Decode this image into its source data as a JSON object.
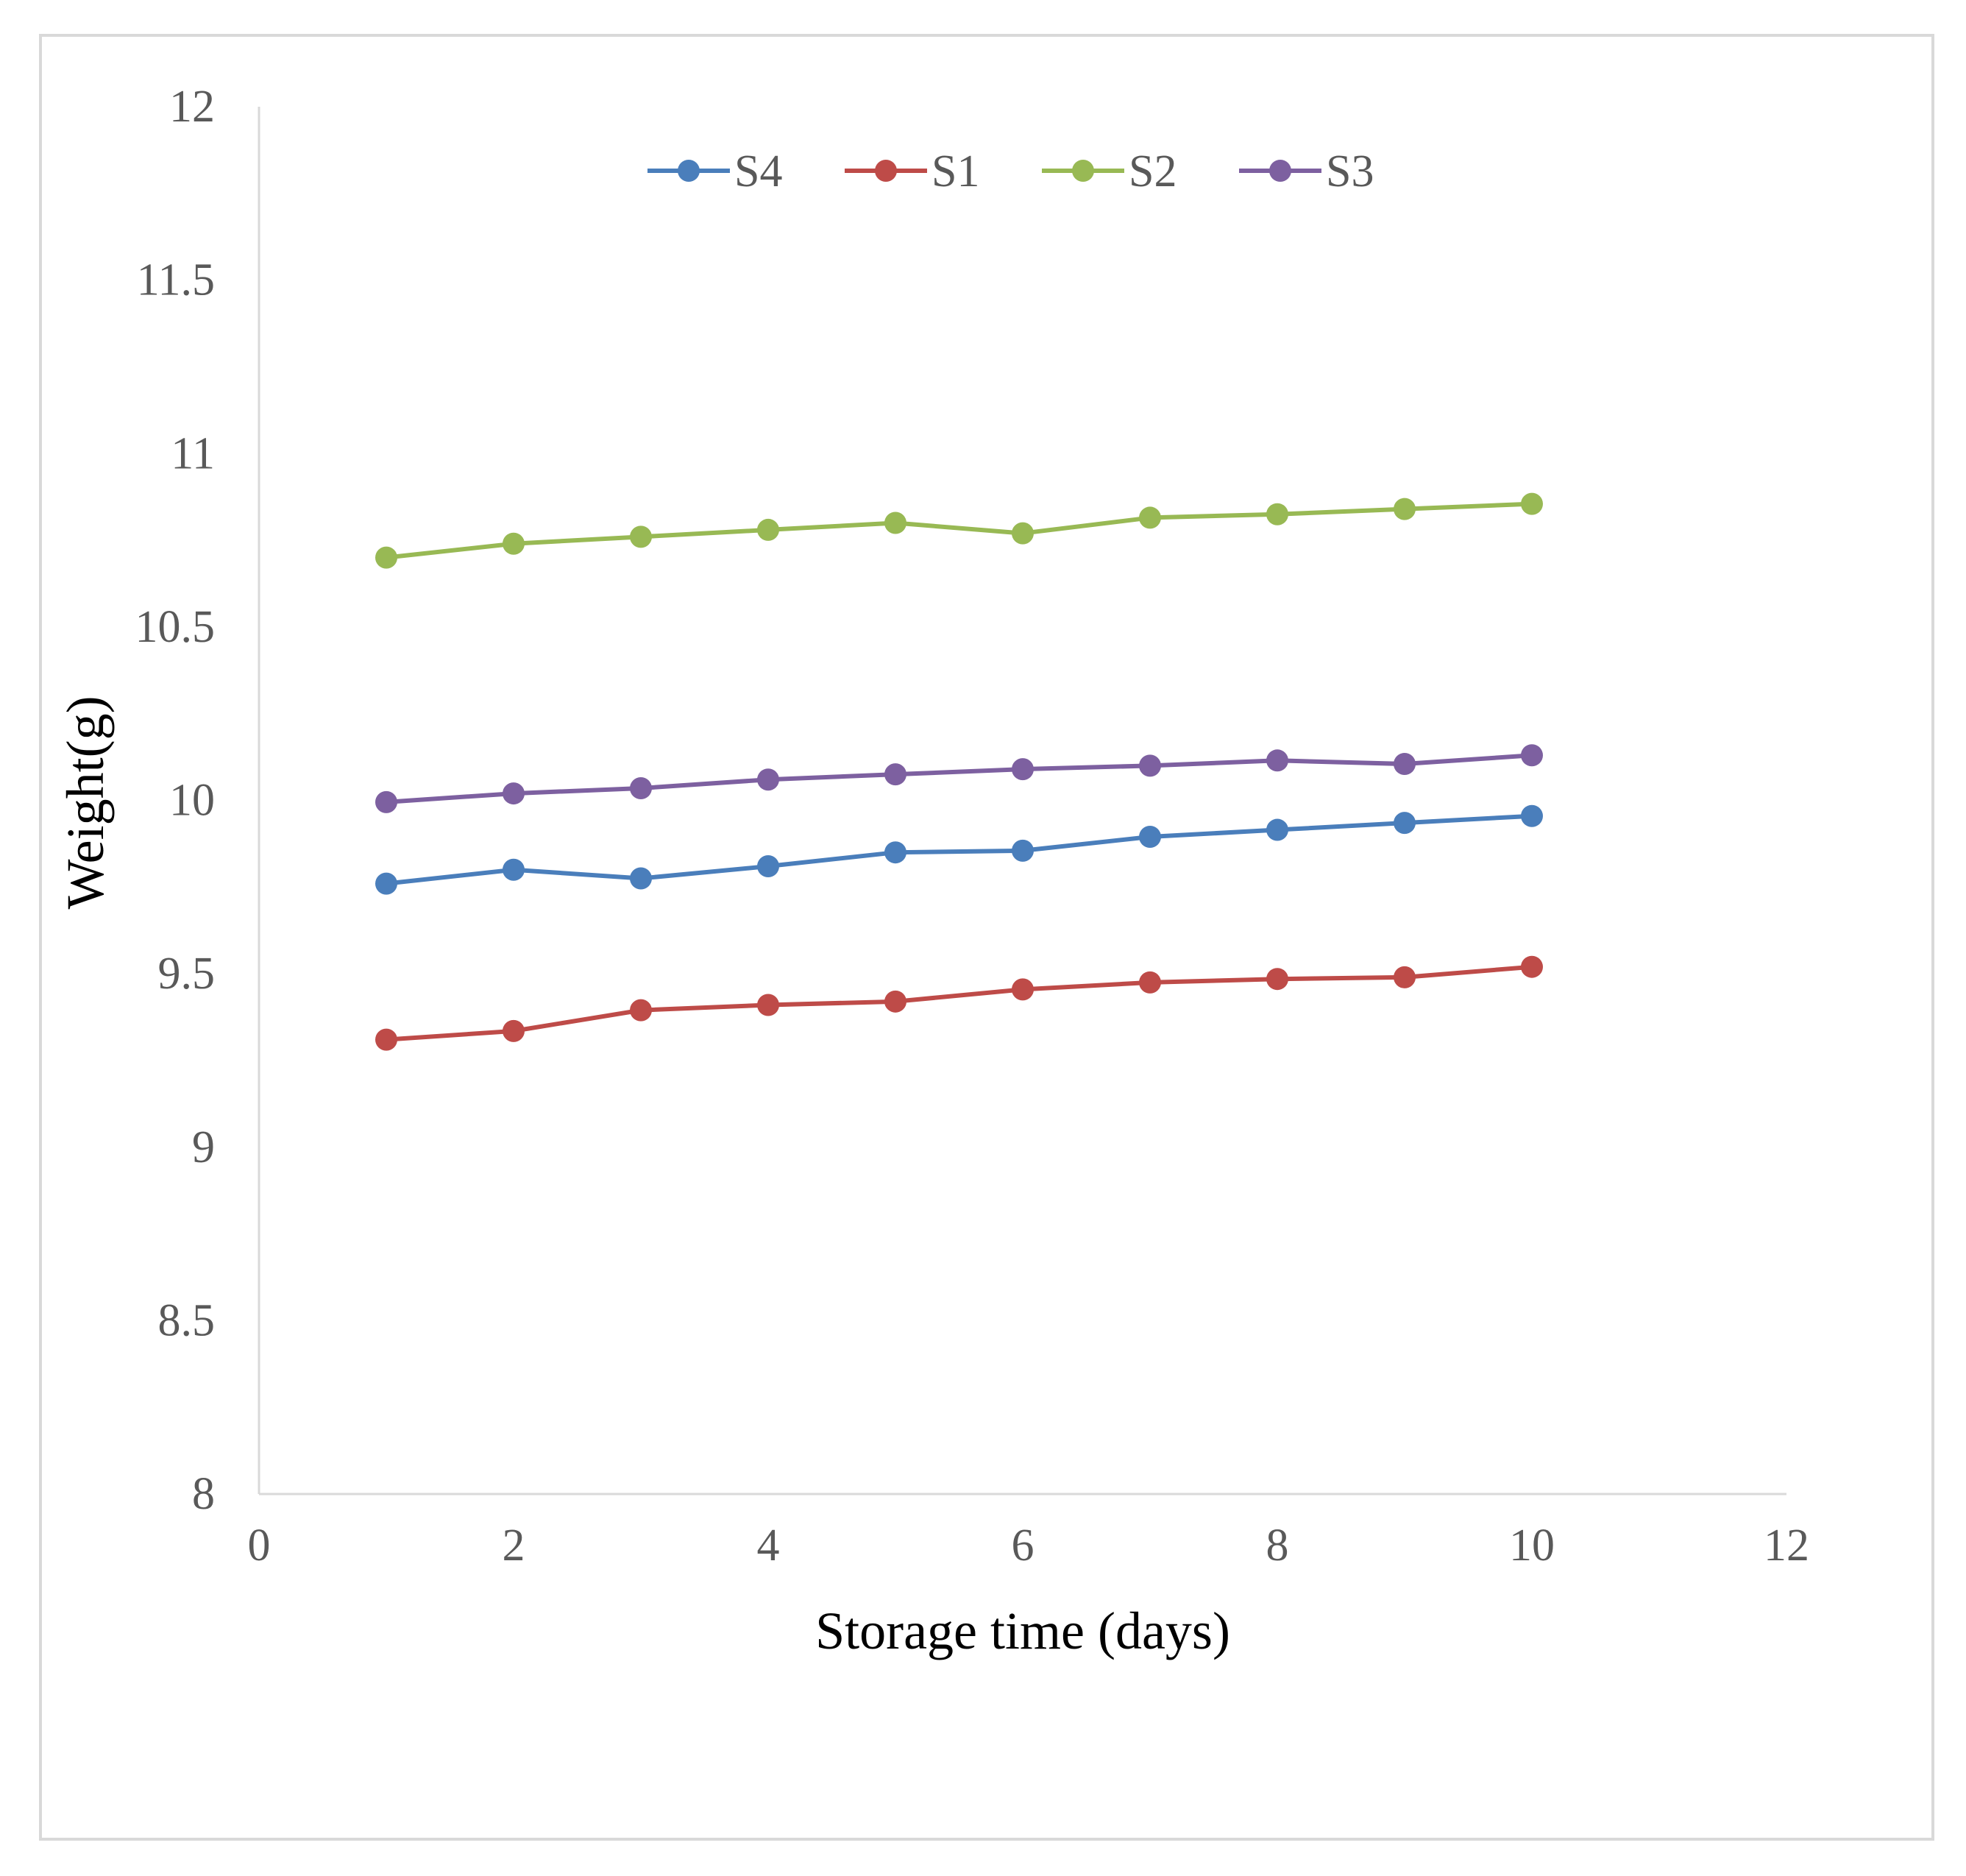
{
  "chart_data": {
    "type": "line",
    "title": "",
    "xlabel": "Storage time (days)",
    "ylabel": "Weight(g)",
    "xlim": [
      0,
      12
    ],
    "ylim": [
      8,
      12
    ],
    "x_ticks": [
      0,
      2,
      4,
      6,
      8,
      10,
      12
    ],
    "y_ticks": [
      8,
      8.5,
      9,
      9.5,
      10,
      10.5,
      11,
      11.5,
      12
    ],
    "x_tick_labels": [
      "0",
      "2",
      "4",
      "6",
      "8",
      "10",
      "12"
    ],
    "y_tick_labels": [
      "8",
      "8.5",
      "9",
      "9.5",
      "10",
      "10.5",
      "11",
      "11.5",
      "12"
    ],
    "grid": false,
    "legend_position": "top",
    "x": [
      1,
      2,
      3,
      4,
      5,
      6,
      7,
      8,
      9,
      10
    ],
    "series": [
      {
        "name": "S4",
        "color": "#4a7ebb",
        "values": [
          9.76,
          9.8,
          9.775,
          9.81,
          9.85,
          9.855,
          9.895,
          9.915,
          9.935,
          9.955
        ]
      },
      {
        "name": "S1",
        "color": "#be4b48",
        "values": [
          9.31,
          9.335,
          9.395,
          9.41,
          9.42,
          9.455,
          9.475,
          9.485,
          9.49,
          9.52
        ]
      },
      {
        "name": "S2",
        "color": "#98b954",
        "values": [
          10.7,
          10.74,
          10.76,
          10.78,
          10.8,
          10.77,
          10.815,
          10.825,
          10.84,
          10.855
        ]
      },
      {
        "name": "S3",
        "color": "#7d60a0",
        "values": [
          9.995,
          10.02,
          10.035,
          10.06,
          10.075,
          10.09,
          10.1,
          10.115,
          10.105,
          10.13
        ]
      }
    ]
  }
}
